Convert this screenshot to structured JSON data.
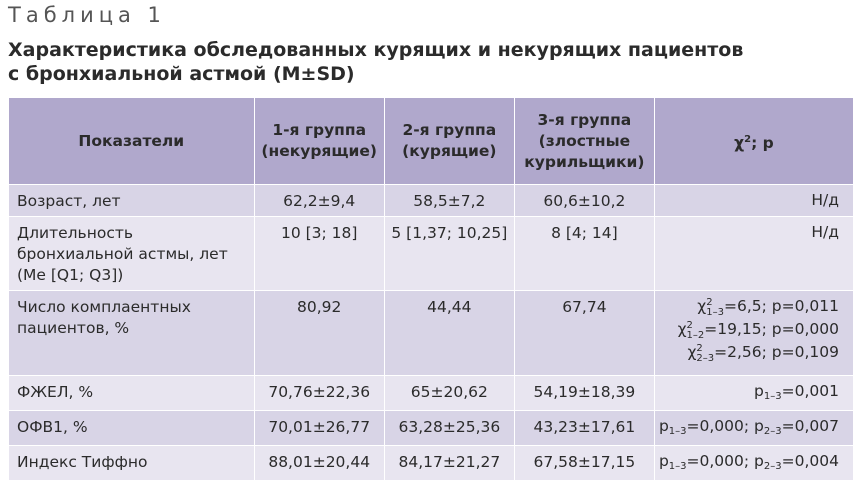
{
  "table_label": "Таблица 1",
  "title": {
    "line1": "Характеристика обследованных курящих и некурящих пациентов",
    "line2": "с бронхиальной астмой (M±SD)"
  },
  "columns": {
    "param": "Показатели",
    "group1": [
      "1-я группа",
      "(некурящие)"
    ],
    "group2": [
      "2-я группа",
      "(курящие)"
    ],
    "group3": [
      "3-я группа",
      "(злостные",
      "курильщики)"
    ],
    "chi_base": "χ",
    "chi_sup": "2",
    "chi_rest": "; р"
  },
  "rows": [
    {
      "label": "Возраст, лет",
      "g1": "62,2±9,4",
      "g2": "58,5±7,2",
      "g3": "60,6±10,2",
      "stat": [
        [
          "Н/д"
        ]
      ]
    },
    {
      "label": "Длительность бронхиальной астмы, лет (Me [Q1; Q3])",
      "g1": "10 [3; 18]",
      "g2": "5 [1,37; 10,25]",
      "g3": "8 [4; 14]",
      "stat": [
        [
          "Н/д"
        ]
      ]
    },
    {
      "label": "Число комплаентных пациентов, %",
      "g1": "80,92",
      "g2": "44,44",
      "g3": "67,74",
      "stat": [
        [
          "χ",
          {
            "sup": "2",
            "sub": "1–3"
          },
          "=6,5; p=0,011"
        ],
        [
          "χ",
          {
            "sup": "2",
            "sub": "1–2"
          },
          "=19,15; p=0,000"
        ],
        [
          "χ",
          {
            "sup": "2",
            "sub": "2–3"
          },
          "=2,56; p=0,109"
        ]
      ]
    },
    {
      "label": "ФЖЕЛ, %",
      "g1": "70,76±22,36",
      "g2": "65±20,62",
      "g3": "54,19±18,39",
      "stat": [
        [
          "p",
          {
            "sub": "1–3"
          },
          "=0,001"
        ]
      ]
    },
    {
      "label": "ОФВ1, %",
      "g1": "70,01±26,77",
      "g2": "63,28±25,36",
      "g3": "43,23±17,61",
      "stat": [
        [
          "p",
          {
            "sub": "1–3"
          },
          "=0,000; p",
          {
            "sub": "2–3"
          },
          "=0,007"
        ]
      ]
    },
    {
      "label": "Индекс Тиффно",
      "g1": "88,01±20,44",
      "g2": "84,17±21,27",
      "g3": "67,58±17,15",
      "stat": [
        [
          "p",
          {
            "sub": "1–3"
          },
          "=0,000; p",
          {
            "sub": "2–3"
          },
          "=0,004"
        ]
      ]
    }
  ],
  "colors": {
    "header_bg": "#b0a8cc",
    "row_dark": "#d8d4e6",
    "row_light": "#e8e5f0"
  }
}
